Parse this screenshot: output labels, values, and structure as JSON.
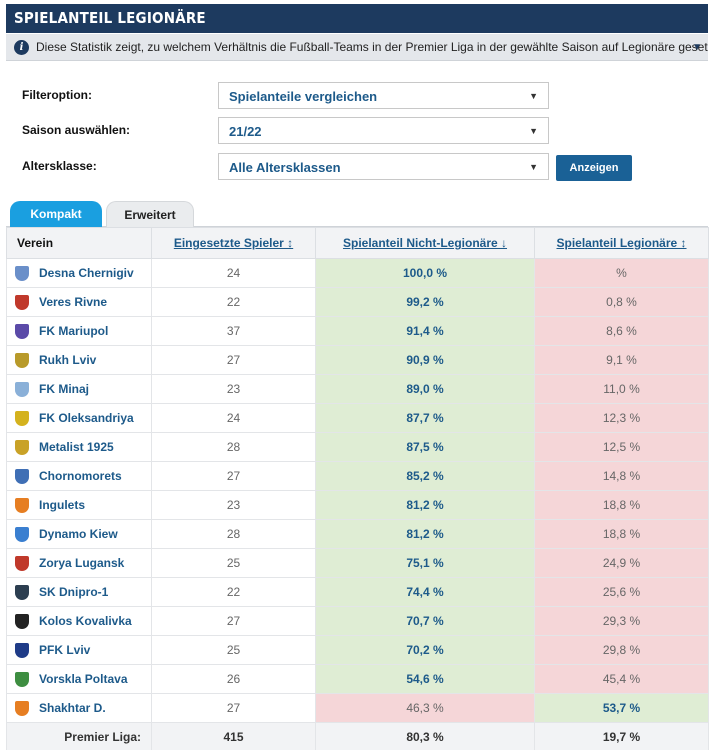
{
  "header": {
    "title": "SPIELANTEIL LEGIONÄRE",
    "info_text": "Diese Statistik zeigt, zu welchem Verhältnis die Fußball-Teams in der Premier Liga in der gewählte Saison auf Legionäre gesetzt haben. Neben..."
  },
  "filters": {
    "filter_label": "Filteroption:",
    "filter_value": "Spielanteile vergleichen",
    "season_label": "Saison auswählen:",
    "season_value": "21/22",
    "age_label": "Altersklasse:",
    "age_value": "Alle Altersklassen",
    "submit_label": "Anzeigen"
  },
  "tabs": {
    "active": "Kompakt",
    "inactive": "Erweitert"
  },
  "table": {
    "headers": {
      "club": "Verein",
      "players": "Eingesetzte Spieler ↕",
      "non_legion": "Spielanteil Nicht-Legionäre ↓",
      "legion": "Spielanteil Legionäre ↕"
    },
    "rows": [
      {
        "club": "Desna Chernigiv",
        "players": "24",
        "non_legion": "100,0 %",
        "legion": "%",
        "crest": "#6a8fc9"
      },
      {
        "club": "Veres Rivne",
        "players": "22",
        "non_legion": "99,2 %",
        "legion": "0,8 %",
        "crest": "#c0392b"
      },
      {
        "club": "FK Mariupol",
        "players": "37",
        "non_legion": "91,4 %",
        "legion": "8,6 %",
        "crest": "#5b4aa8"
      },
      {
        "club": "Rukh Lviv",
        "players": "27",
        "non_legion": "90,9 %",
        "legion": "9,1 %",
        "crest": "#b89a2a"
      },
      {
        "club": "FK Minaj",
        "players": "23",
        "non_legion": "89,0 %",
        "legion": "11,0 %",
        "crest": "#8ab0d8"
      },
      {
        "club": "FK Oleksandriya",
        "players": "24",
        "non_legion": "87,7 %",
        "legion": "12,3 %",
        "crest": "#d4b21e"
      },
      {
        "club": "Metalist 1925",
        "players": "28",
        "non_legion": "87,5 %",
        "legion": "12,5 %",
        "crest": "#c9a227"
      },
      {
        "club": "Chornomorets",
        "players": "27",
        "non_legion": "85,2 %",
        "legion": "14,8 %",
        "crest": "#3f6fb5"
      },
      {
        "club": "Ingulets",
        "players": "23",
        "non_legion": "81,2 %",
        "legion": "18,8 %",
        "crest": "#e67e22"
      },
      {
        "club": "Dynamo Kiew",
        "players": "28",
        "non_legion": "81,2 %",
        "legion": "18,8 %",
        "crest": "#3a7fd0"
      },
      {
        "club": "Zorya Lugansk",
        "players": "25",
        "non_legion": "75,1 %",
        "legion": "24,9 %",
        "crest": "#c0392b"
      },
      {
        "club": "SK Dnipro-1",
        "players": "22",
        "non_legion": "74,4 %",
        "legion": "25,6 %",
        "crest": "#2c3e50"
      },
      {
        "club": "Kolos Kovalivka",
        "players": "27",
        "non_legion": "70,7 %",
        "legion": "29,3 %",
        "crest": "#222222"
      },
      {
        "club": "PFK Lviv",
        "players": "25",
        "non_legion": "70,2 %",
        "legion": "29,8 %",
        "crest": "#1f3c88"
      },
      {
        "club": "Vorskla Poltava",
        "players": "26",
        "non_legion": "54,6 %",
        "legion": "45,4 %",
        "crest": "#3e8e41"
      },
      {
        "club": "Shakhtar D.",
        "players": "27",
        "non_legion": "46,3 %",
        "legion": "53,7 %",
        "crest": "#e67e22"
      }
    ],
    "footer": {
      "label": "Premier Liga:",
      "players": "415",
      "non_legion": "80,3 %",
      "legion": "19,7 %"
    }
  }
}
